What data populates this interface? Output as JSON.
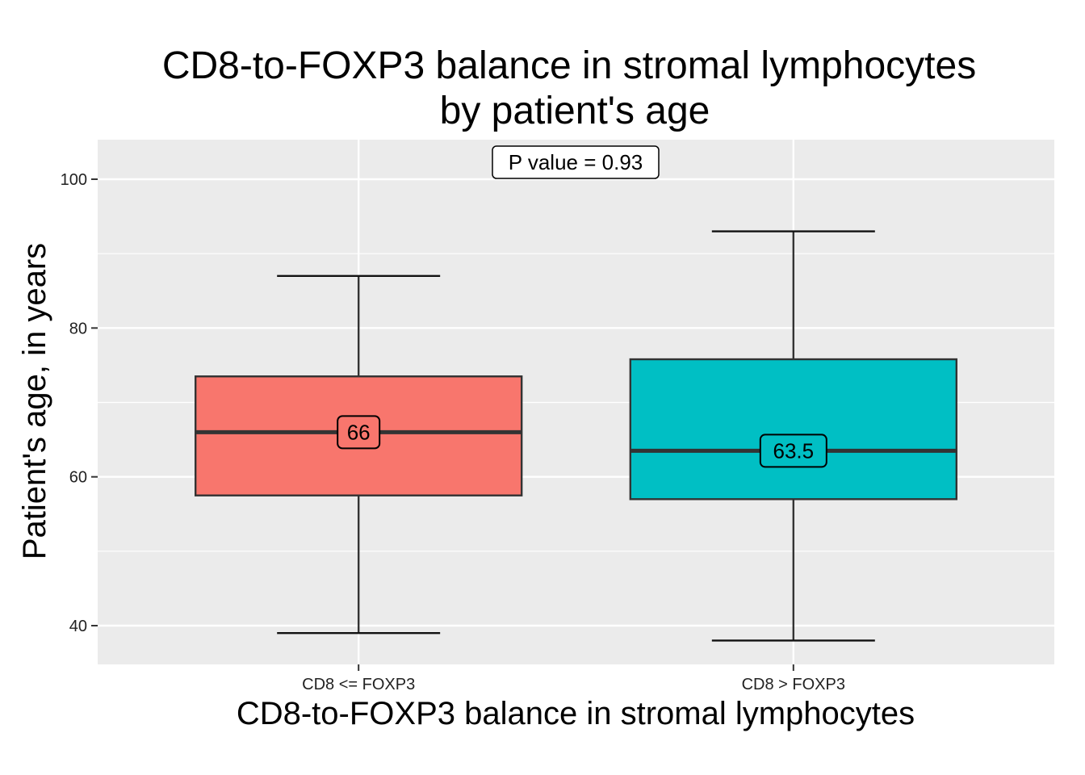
{
  "chart_data": {
    "type": "boxplot",
    "title": [
      "CD8-to-FOXP3 balance in stromal lymphocytes",
      "by patient's age"
    ],
    "xlabel": "CD8-to-FOXP3 balance in stromal lymphocytes",
    "ylabel": "Patient's age, in years",
    "categories": [
      "CD8 <= FOXP3",
      "CD8 > FOXP3"
    ],
    "boxes": [
      {
        "name": "CD8 <= FOXP3",
        "min": 39,
        "q1": 57.5,
        "median": 66,
        "q3": 73.5,
        "max": 87,
        "fill": "#F8766D",
        "median_label": "66"
      },
      {
        "name": "CD8 > FOXP3",
        "min": 38,
        "q1": 57,
        "median": 63.5,
        "q3": 75.8,
        "max": 93,
        "fill": "#00BFC4",
        "median_label": "63.5"
      }
    ],
    "ylim": [
      35,
      105
    ],
    "yticks": [
      40,
      60,
      80,
      100
    ],
    "grid": true,
    "annotation": "P value = 0.93",
    "panel_background": "#EBEBEB",
    "grid_color": "#FFFFFF"
  }
}
